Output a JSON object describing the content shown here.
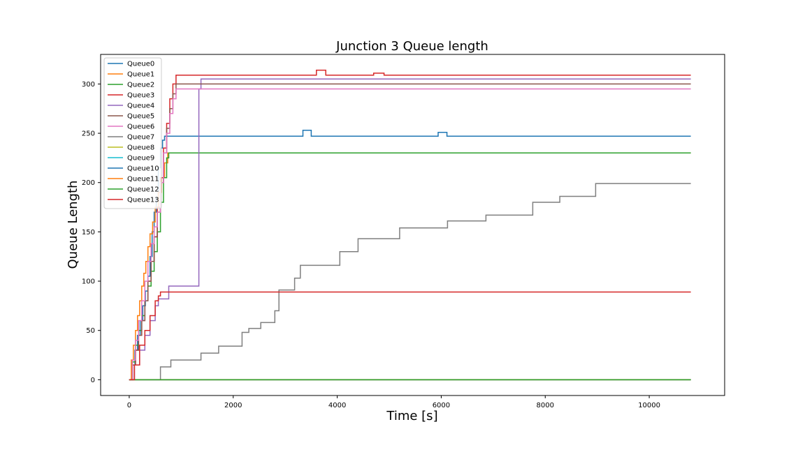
{
  "chart_data": {
    "type": "line",
    "title": "Junction 3 Queue length",
    "xlabel": "Time [s]",
    "ylabel": "Queue Length",
    "xlim": [
      -550,
      11450
    ],
    "ylim": [
      -16,
      330
    ],
    "xticks": [
      0,
      2000,
      4000,
      6000,
      8000,
      10000
    ],
    "yticks": [
      0,
      50,
      100,
      150,
      200,
      250,
      300
    ],
    "grid": false,
    "legend_position": "top-left",
    "series": [
      {
        "name": "Queue0",
        "color": "#1f77b4",
        "x": [
          0,
          60,
          110,
          160,
          210,
          260,
          310,
          360,
          400,
          440,
          480,
          520,
          560,
          600,
          640,
          680,
          3340,
          3340,
          3500,
          3500,
          5940,
          5940,
          6110,
          6110,
          10800
        ],
        "y": [
          0,
          15,
          30,
          45,
          60,
          75,
          90,
          105,
          125,
          150,
          170,
          185,
          215,
          235,
          243,
          247,
          247,
          253,
          253,
          247,
          247,
          251,
          251,
          247,
          247
        ]
      },
      {
        "name": "Queue1",
        "color": "#ff7f0e",
        "x": [
          0,
          40,
          80,
          120,
          160,
          200,
          240,
          280,
          320,
          360,
          400,
          450,
          500,
          560,
          620,
          680,
          740,
          10800
        ],
        "y": [
          0,
          20,
          35,
          50,
          65,
          80,
          95,
          108,
          120,
          135,
          148,
          160,
          175,
          190,
          205,
          220,
          230,
          230
        ]
      },
      {
        "name": "Queue2",
        "color": "#2ca02c",
        "x": [
          0,
          60,
          120,
          180,
          240,
          300,
          360,
          420,
          480,
          540,
          600,
          660,
          720,
          760,
          10800
        ],
        "y": [
          0,
          18,
          35,
          50,
          65,
          80,
          95,
          110,
          130,
          150,
          180,
          205,
          225,
          230,
          230
        ]
      },
      {
        "name": "Queue3",
        "color": "#d62728",
        "x": [
          0,
          60,
          120,
          180,
          240,
          300,
          360,
          420,
          480,
          540,
          600,
          660,
          720,
          780,
          840,
          900,
          1200,
          3600,
          3600,
          3780,
          3780,
          4700,
          4700,
          4900,
          4900,
          5400,
          5400,
          10800
        ],
        "y": [
          0,
          15,
          30,
          45,
          60,
          80,
          100,
          120,
          145,
          175,
          205,
          235,
          260,
          285,
          300,
          309,
          309,
          309,
          314,
          314,
          309,
          309,
          311,
          311,
          309,
          309,
          309,
          309
        ]
      },
      {
        "name": "Queue4",
        "color": "#9467bd",
        "x": [
          0,
          100,
          200,
          300,
          400,
          500,
          560,
          740,
          760,
          1140,
          1340,
          1340,
          1380,
          10800
        ],
        "y": [
          0,
          15,
          30,
          45,
          60,
          75,
          82,
          82,
          95,
          95,
          127,
          295,
          305,
          305
        ]
      },
      {
        "name": "Queue5",
        "color": "#8c564b",
        "x": [
          0,
          60,
          120,
          180,
          240,
          300,
          360,
          420,
          480,
          540,
          600,
          660,
          720,
          780,
          840,
          900,
          10800
        ],
        "y": [
          0,
          15,
          30,
          45,
          60,
          80,
          100,
          120,
          145,
          170,
          200,
          230,
          255,
          275,
          290,
          300,
          300
        ]
      },
      {
        "name": "Queue6",
        "color": "#e377c2",
        "x": [
          0,
          60,
          120,
          180,
          240,
          300,
          360,
          420,
          480,
          540,
          600,
          660,
          720,
          780,
          840,
          900,
          10800
        ],
        "y": [
          0,
          20,
          40,
          60,
          80,
          100,
          120,
          138,
          155,
          170,
          200,
          230,
          250,
          270,
          285,
          295,
          295
        ]
      },
      {
        "name": "Queue7",
        "color": "#7f7f7f",
        "x": [
          0,
          530,
          600,
          800,
          1380,
          1380,
          1720,
          1720,
          2170,
          2170,
          2300,
          2300,
          2530,
          2530,
          2800,
          2800,
          2880,
          2880,
          3180,
          3180,
          3290,
          3290,
          4050,
          4050,
          4400,
          4400,
          5200,
          5200,
          6120,
          6120,
          6860,
          6860,
          7760,
          7760,
          8280,
          8280,
          8970,
          8970,
          10800
        ],
        "y": [
          0,
          0,
          13,
          20,
          20,
          27,
          27,
          34,
          34,
          48,
          48,
          52,
          52,
          58,
          58,
          70,
          70,
          91,
          91,
          103,
          103,
          116,
          116,
          130,
          130,
          143,
          143,
          154,
          154,
          161,
          161,
          167,
          167,
          180,
          180,
          186,
          186,
          199,
          199
        ]
      },
      {
        "name": "Queue8",
        "color": "#bcbd22",
        "x": [
          0,
          10800
        ],
        "y": [
          0,
          0
        ]
      },
      {
        "name": "Queue9",
        "color": "#17becf",
        "x": [
          0,
          10800
        ],
        "y": [
          0,
          0
        ]
      },
      {
        "name": "Queue10",
        "color": "#1f77b4",
        "x": [
          0,
          10800
        ],
        "y": [
          0,
          0
        ]
      },
      {
        "name": "Queue11",
        "color": "#ff7f0e",
        "x": [
          0,
          10800
        ],
        "y": [
          0,
          0
        ]
      },
      {
        "name": "Queue12",
        "color": "#2ca02c",
        "x": [
          0,
          10800
        ],
        "y": [
          0,
          0
        ]
      },
      {
        "name": "Queue13",
        "color": "#d62728",
        "x": [
          0,
          100,
          200,
          300,
          400,
          500,
          560,
          600,
          10800
        ],
        "y": [
          0,
          15,
          35,
          50,
          65,
          80,
          85,
          89,
          89
        ]
      }
    ]
  }
}
